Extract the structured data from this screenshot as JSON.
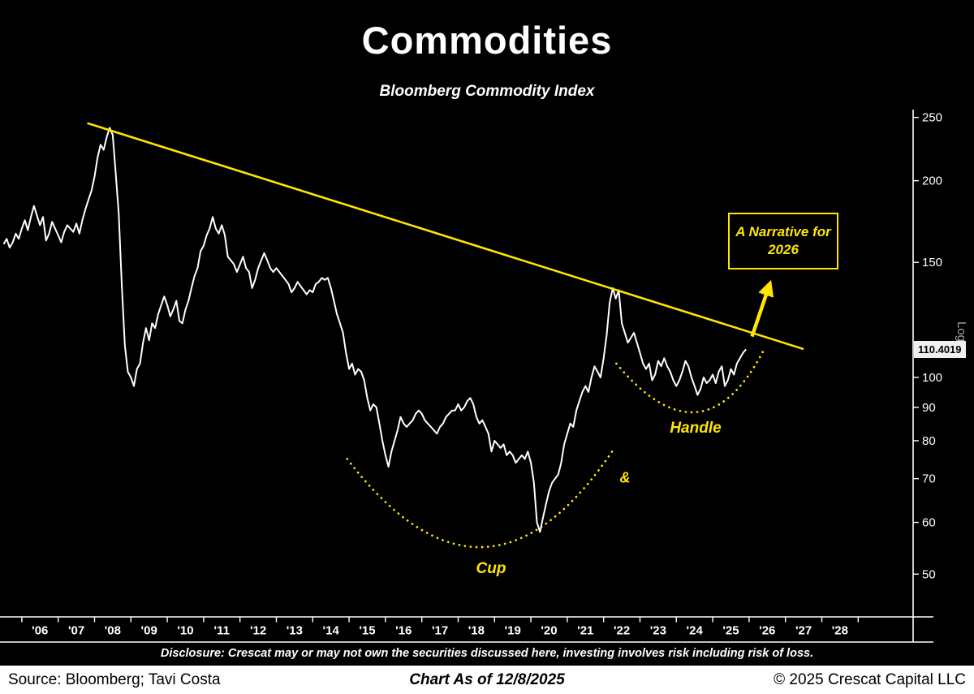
{
  "page": {
    "background": "#000000"
  },
  "header": {
    "title": "Commodities",
    "subtitle": "Bloomberg Commodity Index"
  },
  "chart_data": {
    "type": "line",
    "title": "Commodities",
    "subtitle": "Bloomberg Commodity Index",
    "y_scale": "log",
    "y_scale_label": "Log",
    "ylim": [
      43,
      257
    ],
    "xlim": [
      2005.4,
      2030.6
    ],
    "y_ticks": [
      250,
      200,
      150,
      100,
      90,
      80,
      70,
      60,
      50
    ],
    "x_tick_labels": [
      "'06",
      "'07",
      "'08",
      "'09",
      "'10",
      "'11",
      "'12",
      "'13",
      "'14",
      "'15",
      "'16",
      "'17",
      "'18",
      "'19",
      "'20",
      "'21",
      "'22",
      "'23",
      "'24",
      "'25",
      "'26",
      "'27",
      "'28"
    ],
    "colors": {
      "accent": "#FFE600",
      "line": "#FFFFFF",
      "axis": "#FFFFFF"
    },
    "last_value_label": "110.4019",
    "last_value": 110.4019,
    "series": {
      "name": "Bloomberg Commodity Index",
      "start_year": 2005.5,
      "step_years": 0.083333,
      "values": [
        160,
        163,
        158,
        161,
        166,
        163,
        169,
        174,
        168,
        176,
        183,
        177,
        171,
        176,
        162,
        166,
        173,
        169,
        165,
        161,
        167,
        171,
        169,
        167,
        172,
        166,
        174,
        181,
        187,
        193,
        203,
        217,
        227,
        223,
        233,
        241,
        235,
        205,
        178,
        138,
        112,
        102,
        100,
        97,
        103,
        105,
        113,
        119,
        114,
        121,
        119,
        125,
        129,
        133,
        129,
        124,
        127,
        131,
        122,
        121,
        127,
        131,
        137,
        143,
        147,
        156,
        159,
        165,
        169,
        176,
        169,
        166,
        171,
        165,
        153,
        151,
        149,
        145,
        149,
        153,
        147,
        145,
        137,
        141,
        147,
        151,
        155,
        151,
        147,
        145,
        147,
        145,
        143,
        141,
        139,
        135,
        137,
        140,
        138,
        136,
        134,
        136,
        135,
        139,
        140,
        142,
        141,
        142,
        137,
        131,
        125,
        121,
        117,
        109,
        103,
        105,
        101,
        103,
        102,
        99,
        93,
        89,
        91,
        90,
        85,
        80,
        76,
        73,
        77,
        80,
        83,
        87,
        85,
        84,
        85,
        86,
        88,
        89,
        88,
        86,
        85,
        84,
        83,
        82,
        84,
        85,
        87,
        88,
        89,
        89,
        91,
        89,
        90,
        92,
        93,
        91,
        87,
        85,
        86,
        84,
        82,
        77,
        80,
        79,
        78,
        79,
        76,
        77,
        76,
        74,
        75,
        76,
        75,
        77,
        74,
        69,
        60,
        58,
        61,
        64,
        67,
        69,
        70,
        71,
        74,
        79,
        82,
        85,
        84,
        89,
        92,
        95,
        97,
        95,
        100,
        104,
        102,
        100,
        107,
        116,
        130,
        137,
        132,
        136,
        121,
        117,
        113,
        115,
        117,
        113,
        109,
        105,
        103,
        105,
        99,
        101,
        106,
        104,
        107,
        104,
        102,
        99,
        97,
        99,
        102,
        106,
        104,
        100,
        97,
        94,
        96,
        100,
        98,
        99,
        101,
        98,
        102,
        104,
        97,
        99,
        103,
        101,
        105,
        107,
        109,
        110.4
      ]
    },
    "trendline": {
      "description": "descending resistance line",
      "from": {
        "t": 2007.8,
        "v": 245
      },
      "to": {
        "t": 2027.5,
        "v": 110.5
      }
    },
    "annotations": {
      "cup": {
        "label": "Cup",
        "start": {
          "t": 2014.95,
          "v": 75
        },
        "bottom": {
          "t": 2018.7,
          "v": 55
        },
        "end": {
          "t": 2022.3,
          "v": 78
        }
      },
      "ampersand": {
        "label": "&"
      },
      "handle": {
        "label": "Handle",
        "start": {
          "t": 2022.35,
          "v": 105
        },
        "bottom": {
          "t": 2024.55,
          "v": 88.5
        },
        "end": {
          "t": 2026.4,
          "v": 110
        }
      },
      "narrative": {
        "label": "A Narrative for 2026"
      },
      "arrow": {
        "from": {
          "t": 2026.08,
          "v": 115.5
        },
        "to": {
          "t": 2026.55,
          "v": 138
        }
      }
    }
  },
  "footer": {
    "disclosure": "Disclosure: Crescat may or may not own the securities discussed here, investing involves risk including risk of loss.",
    "source": "Source: Bloomberg; Tavi Costa",
    "as_of": "Chart As of 12/8/2025",
    "copyright": "© 2025 Crescat Capital LLC"
  }
}
